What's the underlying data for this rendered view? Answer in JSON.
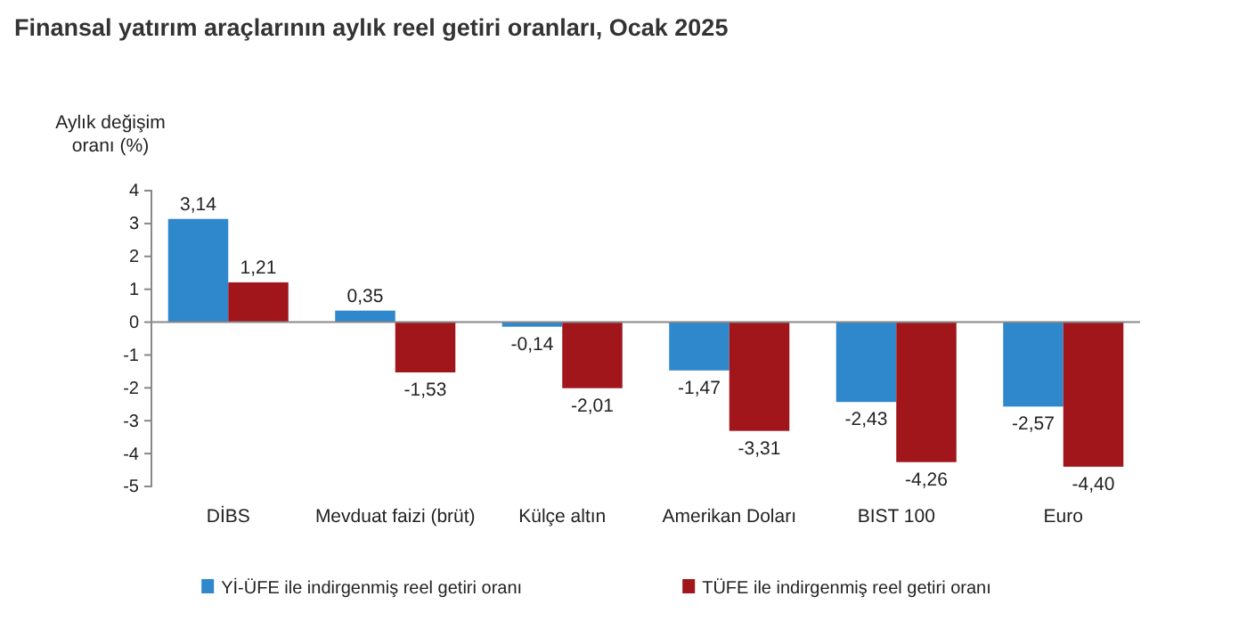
{
  "chart_data": {
    "type": "bar",
    "title": "Finansal yatırım araçlarının aylık reel getiri oranları, Ocak 2025",
    "ylabel": "Aylık değişim oranı (%)",
    "categories": [
      "DİBS",
      "Mevduat faizi (brüt)",
      "Külçe altın",
      "Amerikan Doları",
      "BIST 100",
      "Euro"
    ],
    "series": [
      {
        "name": "Yİ-ÜFE ile indirgenmiş reel getiri oranı",
        "color": "#2f87cc",
        "values": [
          3.14,
          0.35,
          -0.14,
          -1.47,
          -2.43,
          -2.57
        ],
        "value_labels": [
          "3,14",
          "0,35",
          "-0,14",
          "-1,47",
          "-2,43",
          "-2,57"
        ]
      },
      {
        "name": "TÜFE ile indirgenmiş reel getiri oranı",
        "color": "#a0161b",
        "values": [
          1.21,
          -1.53,
          -2.01,
          -3.31,
          -4.26,
          -4.4
        ],
        "value_labels": [
          "1,21",
          "-1,53",
          "-2,01",
          "-3,31",
          "-4,26",
          "-4,40"
        ]
      }
    ],
    "ylim": [
      -5,
      4
    ],
    "yticks": [
      4,
      3,
      2,
      1,
      0,
      -1,
      -2,
      -3,
      -4,
      -5
    ],
    "legend": "bottom"
  }
}
